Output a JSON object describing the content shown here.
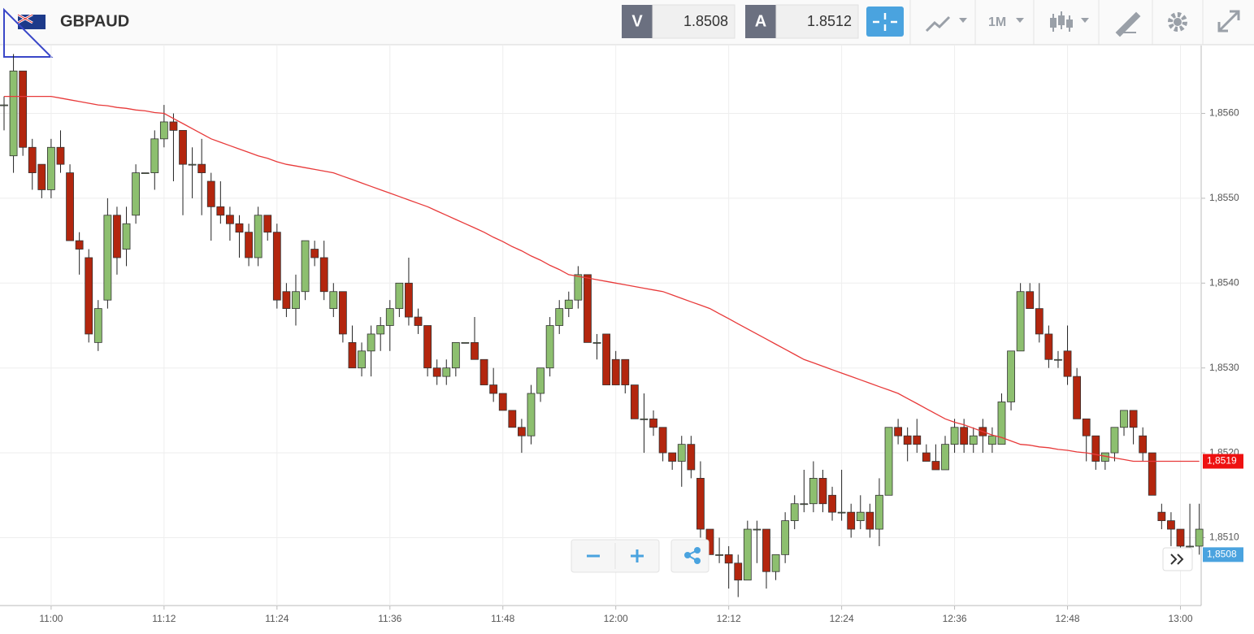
{
  "header": {
    "symbol": "GBPAUD",
    "bid_label": "V",
    "bid": "1.8508",
    "ask_label": "A",
    "ask": "1.8512",
    "timeframe": "1M"
  },
  "chart_data": {
    "type": "candlestick",
    "categories": [
      null,
      null,
      null,
      null,
      null,
      "11:00",
      null,
      null,
      null,
      null,
      null,
      null,
      null,
      null,
      null,
      null,
      null,
      "11:12",
      null,
      null,
      null,
      null,
      null,
      null,
      null,
      null,
      null,
      null,
      null,
      "11:24",
      null,
      null,
      null,
      null,
      null,
      null,
      null,
      null,
      null,
      null,
      null,
      "11:36",
      null,
      null,
      null,
      null,
      null,
      null,
      null,
      null,
      null,
      null,
      null,
      "11:48",
      null,
      null,
      null,
      null,
      null,
      null,
      null,
      null,
      null,
      null,
      null,
      "12:00",
      null,
      null,
      null,
      null,
      null,
      null,
      null,
      null,
      null,
      null,
      null,
      "12:12",
      null,
      null,
      null,
      null,
      null,
      null,
      null,
      null,
      null,
      null,
      null,
      "12:24",
      null,
      null,
      null,
      null,
      null,
      null,
      null,
      null,
      null,
      null,
      null,
      "12:36",
      null,
      null,
      null,
      null,
      null,
      null,
      null,
      null,
      null,
      null,
      null,
      "12:48",
      null,
      null,
      null,
      null,
      null,
      null,
      null,
      null,
      null,
      null,
      null,
      "13:00",
      null,
      null
    ],
    "open": [
      1.8561,
      1.8555,
      1.8565,
      1.8556,
      1.8554,
      1.8551,
      1.8556,
      1.8553,
      1.8545,
      1.8543,
      1.8533,
      1.8538,
      1.8548,
      1.8544,
      1.8548,
      1.8553,
      1.8553,
      1.8557,
      1.8559,
      1.8558,
      1.8554,
      1.8554,
      1.8552,
      1.8549,
      1.8548,
      1.8547,
      1.8546,
      1.8543,
      1.8548,
      1.8546,
      1.8539,
      1.8537,
      1.8539,
      1.8544,
      1.8543,
      1.8537,
      1.8539,
      1.8533,
      1.853,
      1.8532,
      1.8534,
      1.8535,
      1.8537,
      1.854,
      1.8536,
      1.8535,
      1.853,
      1.8529,
      1.853,
      1.8533,
      1.8533,
      1.8531,
      1.8528,
      1.8527,
      1.8525,
      1.8523,
      1.8522,
      1.8527,
      1.853,
      1.8535,
      1.8537,
      1.8538,
      1.8541,
      1.8533,
      1.8534,
      1.8531,
      1.8531,
      1.8528,
      1.8524,
      1.8524,
      1.8523,
      1.852,
      1.8519,
      1.8521,
      1.8517,
      1.8511,
      1.8508,
      1.8508,
      1.8507,
      1.8505,
      1.8511,
      1.8511,
      1.8506,
      1.8508,
      1.8512,
      1.8514,
      1.8514,
      1.8517,
      1.8515,
      1.8513,
      1.8513,
      1.8512,
      1.8513,
      1.8511,
      1.8515,
      1.8523,
      1.8522,
      1.8522,
      1.852,
      1.8519,
      1.8518,
      1.8521,
      1.8523,
      1.8521,
      1.8523,
      1.8521,
      1.8521,
      1.8526,
      1.8532,
      1.8539,
      1.8537,
      1.8534,
      1.8531,
      1.8532,
      1.8529,
      1.8524,
      1.8522,
      1.8519,
      1.852,
      1.8523,
      1.8525,
      1.8522,
      1.852,
      1.8513,
      1.8512,
      1.8511,
      1.8509,
      1.8509
    ],
    "high": [
      1.8562,
      1.8567,
      1.8565,
      1.8557,
      1.8554,
      1.8557,
      1.8558,
      1.8554,
      1.8546,
      1.8544,
      1.8538,
      1.855,
      1.8549,
      1.8549,
      1.8554,
      1.8553,
      1.8558,
      1.8561,
      1.856,
      1.8558,
      1.8556,
      1.8557,
      1.8553,
      1.8552,
      1.8549,
      1.8548,
      1.8547,
      1.8549,
      1.8548,
      1.8547,
      1.854,
      1.8541,
      1.8545,
      1.8545,
      1.8545,
      1.854,
      1.8539,
      1.8535,
      1.8533,
      1.8535,
      1.8536,
      1.8538,
      1.854,
      1.8543,
      1.8537,
      1.8535,
      1.8531,
      1.8531,
      1.8533,
      1.8533,
      1.8536,
      1.8531,
      1.853,
      1.8527,
      1.8525,
      1.8524,
      1.8528,
      1.853,
      1.8536,
      1.8538,
      1.8539,
      1.8542,
      1.8541,
      1.8534,
      1.8534,
      1.8532,
      1.8531,
      1.8528,
      1.8527,
      1.8525,
      1.8523,
      1.852,
      1.8522,
      1.8522,
      1.8519,
      1.8511,
      1.851,
      1.8509,
      1.8508,
      1.8512,
      1.8512,
      1.8511,
      1.8508,
      1.8513,
      1.8515,
      1.8518,
      1.8519,
      1.8518,
      1.8516,
      1.8518,
      1.8514,
      1.8515,
      1.8514,
      1.8517,
      1.8523,
      1.8524,
      1.8523,
      1.8524,
      1.8521,
      1.8521,
      1.8522,
      1.8524,
      1.8524,
      1.8523,
      1.8524,
      1.8523,
      1.8527,
      1.8532,
      1.854,
      1.854,
      1.854,
      1.8535,
      1.8532,
      1.8535,
      1.853,
      1.8524,
      1.8522,
      1.852,
      1.8523,
      1.8525,
      1.8525,
      1.8523,
      1.852,
      1.8514,
      1.8513,
      1.8511,
      1.8514,
      1.8514
    ],
    "low": [
      1.8558,
      1.8553,
      1.8555,
      1.8551,
      1.855,
      1.855,
      1.8553,
      1.8545,
      1.8541,
      1.8533,
      1.8532,
      1.8537,
      1.8541,
      1.8542,
      1.8547,
      1.8553,
      1.8551,
      1.8556,
      1.8552,
      1.8548,
      1.855,
      1.8548,
      1.8545,
      1.8547,
      1.8545,
      1.8543,
      1.8542,
      1.8542,
      1.8545,
      1.8537,
      1.8536,
      1.8535,
      1.8538,
      1.8542,
      1.8538,
      1.8536,
      1.8533,
      1.853,
      1.8529,
      1.8529,
      1.8532,
      1.8532,
      1.8536,
      1.8535,
      1.8534,
      1.8529,
      1.8528,
      1.8528,
      1.8529,
      1.8533,
      1.8531,
      1.8528,
      1.8526,
      1.8525,
      1.8523,
      1.852,
      1.8521,
      1.8526,
      1.8529,
      1.8534,
      1.8536,
      1.8537,
      1.8533,
      1.8531,
      1.8528,
      1.8528,
      1.8527,
      1.8524,
      1.852,
      1.8522,
      1.8519,
      1.8518,
      1.8516,
      1.8517,
      1.851,
      1.8508,
      1.8507,
      1.8504,
      1.8503,
      1.8505,
      1.8507,
      1.8504,
      1.8505,
      1.8507,
      1.8511,
      1.8513,
      1.8513,
      1.8513,
      1.8512,
      1.8512,
      1.851,
      1.8511,
      1.851,
      1.8509,
      1.8515,
      1.8521,
      1.8519,
      1.852,
      1.8519,
      1.8518,
      1.8518,
      1.852,
      1.852,
      1.852,
      1.852,
      1.852,
      1.8521,
      1.8525,
      1.8532,
      1.8537,
      1.8533,
      1.853,
      1.853,
      1.8528,
      1.8524,
      1.8519,
      1.8518,
      1.8518,
      1.8519,
      1.8522,
      1.8521,
      1.8519,
      1.8515,
      1.8511,
      1.8509,
      1.8508,
      1.8508,
      1.8508
    ],
    "close": [
      1.8561,
      1.8565,
      1.8556,
      1.8553,
      1.8551,
      1.8556,
      1.8554,
      1.8545,
      1.8544,
      1.8534,
      1.8537,
      1.8548,
      1.8543,
      1.8547,
      1.8553,
      1.8553,
      1.8557,
      1.8559,
      1.8558,
      1.8554,
      1.8554,
      1.8553,
      1.8549,
      1.8548,
      1.8547,
      1.8546,
      1.8543,
      1.8548,
      1.8546,
      1.8538,
      1.8537,
      1.8539,
      1.8545,
      1.8543,
      1.8539,
      1.8539,
      1.8534,
      1.853,
      1.8532,
      1.8534,
      1.8535,
      1.8537,
      1.854,
      1.8536,
      1.8535,
      1.853,
      1.8529,
      1.853,
      1.8533,
      1.8533,
      1.8531,
      1.8528,
      1.8527,
      1.8525,
      1.8523,
      1.8522,
      1.8527,
      1.853,
      1.8535,
      1.8537,
      1.8538,
      1.8541,
      1.8533,
      1.8533,
      1.8528,
      1.8528,
      1.8528,
      1.8524,
      1.8524,
      1.8523,
      1.852,
      1.8519,
      1.8521,
      1.8518,
      1.8511,
      1.8508,
      1.8508,
      1.8507,
      1.8505,
      1.8511,
      1.8511,
      1.8506,
      1.8508,
      1.8512,
      1.8514,
      1.8514,
      1.8517,
      1.8514,
      1.8513,
      1.8513,
      1.8511,
      1.8513,
      1.8511,
      1.8515,
      1.8523,
      1.8522,
      1.8521,
      1.8521,
      1.8519,
      1.8518,
      1.8521,
      1.8523,
      1.8521,
      1.8522,
      1.8522,
      1.8522,
      1.8526,
      1.8532,
      1.8539,
      1.8537,
      1.8534,
      1.8531,
      1.8531,
      1.8529,
      1.8524,
      1.8522,
      1.8519,
      1.852,
      1.8523,
      1.8525,
      1.8523,
      1.852,
      1.8515,
      1.8512,
      1.8511,
      1.8509,
      1.8509,
      1.8511
    ],
    "up_color": "#8dbf6f",
    "down_color": "#b3260e",
    "ma": {
      "color": "#e83a3a",
      "values": [
        1.8562,
        1.8562,
        1.8562,
        1.8562,
        1.8562,
        1.8562,
        1.85618,
        1.85616,
        1.85614,
        1.85612,
        1.8561,
        1.85609,
        1.85607,
        1.85606,
        1.85604,
        1.85603,
        1.85601,
        1.856,
        1.85594,
        1.85588,
        1.85582,
        1.85576,
        1.8557,
        1.85566,
        1.85562,
        1.85558,
        1.85554,
        1.8555,
        1.85547,
        1.85543,
        1.8554,
        1.85538,
        1.85536,
        1.85534,
        1.85532,
        1.8553,
        1.85526,
        1.85522,
        1.85518,
        1.85514,
        1.8551,
        1.85506,
        1.85502,
        1.85498,
        1.85494,
        1.8549,
        1.85485,
        1.8548,
        1.85475,
        1.8547,
        1.85465,
        1.8546,
        1.85454,
        1.85449,
        1.85443,
        1.85438,
        1.85432,
        1.85427,
        1.85421,
        1.85416,
        1.8541,
        1.85408,
        1.85406,
        1.85404,
        1.85402,
        1.854,
        1.85398,
        1.85396,
        1.85394,
        1.85392,
        1.8539,
        1.85386,
        1.85382,
        1.85378,
        1.85374,
        1.8537,
        1.85364,
        1.85358,
        1.85352,
        1.85346,
        1.8534,
        1.85334,
        1.85328,
        1.85322,
        1.85316,
        1.8531,
        1.85306,
        1.85302,
        1.85298,
        1.85294,
        1.8529,
        1.85286,
        1.85282,
        1.85278,
        1.85274,
        1.8527,
        1.85264,
        1.85258,
        1.85252,
        1.85246,
        1.8524,
        1.85236,
        1.85233,
        1.85229,
        1.85225,
        1.85221,
        1.85218,
        1.85214,
        1.8521,
        1.85209,
        1.85207,
        1.85206,
        1.85204,
        1.85203,
        1.85201,
        1.852,
        1.85198,
        1.85196,
        1.85194,
        1.85192,
        1.8519,
        1.8519,
        1.8519,
        1.8519,
        1.8519,
        1.8519,
        1.8519,
        1.8519
      ]
    },
    "ma_tag": {
      "value": 1.8519,
      "label": "1,8519"
    },
    "price_tag": {
      "value": 1.8508,
      "label": "1,8508"
    },
    "ylim": [
      1.8502,
      1.8568
    ],
    "yticks": [
      {
        "value": 1.851,
        "label": "1,8510"
      },
      {
        "value": 1.852,
        "label": "1,8520"
      },
      {
        "value": 1.853,
        "label": "1,8530"
      },
      {
        "value": 1.854,
        "label": "1,8540"
      },
      {
        "value": 1.855,
        "label": "1,8550"
      },
      {
        "value": 1.856,
        "label": "1,8560"
      }
    ],
    "grid": true
  }
}
